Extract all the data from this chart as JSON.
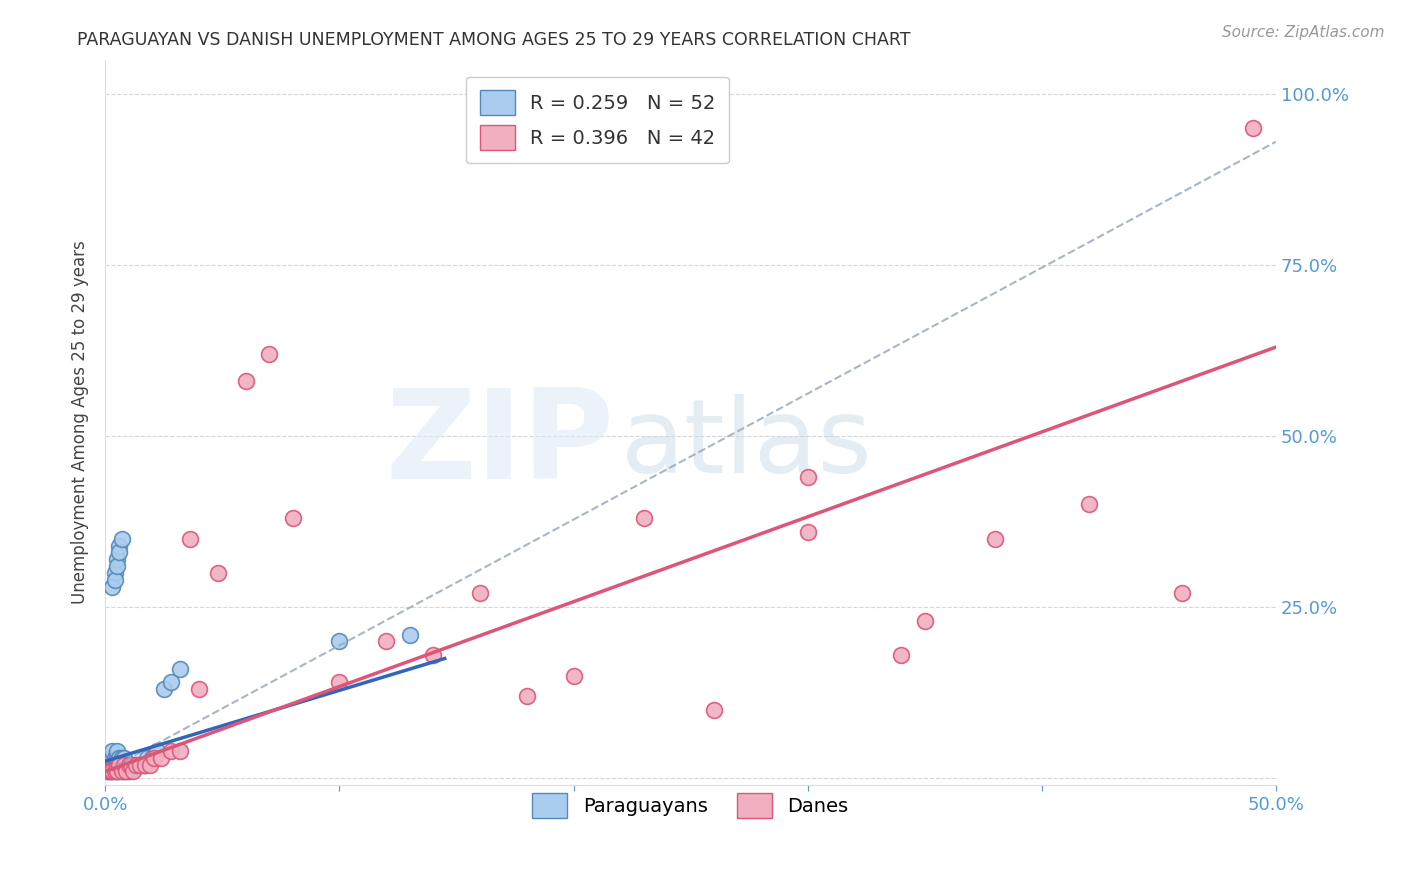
{
  "title": "PARAGUAYAN VS DANISH UNEMPLOYMENT AMONG AGES 25 TO 29 YEARS CORRELATION CHART",
  "source": "Source: ZipAtlas.com",
  "ylabel": "Unemployment Among Ages 25 to 29 years",
  "xlim": [
    0.0,
    0.5
  ],
  "ylim": [
    -0.01,
    1.05
  ],
  "paraguayan_color": "#aaccee",
  "dane_color": "#f0b0c0",
  "paraguayan_edge": "#5588bb",
  "dane_edge": "#dd5577",
  "paraguayan_line_color": "#3366bb",
  "dane_line_color": "#dd5577",
  "dashed_line_color": "#99aabb",
  "tick_color": "#5599dd",
  "title_color": "#333333",
  "source_color": "#999999",
  "paraguayan_R": 0.259,
  "paraguayan_N": 52,
  "dane_R": 0.396,
  "dane_N": 42,
  "par_x": [
    0.001,
    0.001,
    0.002,
    0.002,
    0.002,
    0.003,
    0.003,
    0.003,
    0.003,
    0.004,
    0.004,
    0.004,
    0.005,
    0.005,
    0.005,
    0.005,
    0.006,
    0.006,
    0.006,
    0.007,
    0.007,
    0.007,
    0.008,
    0.008,
    0.008,
    0.009,
    0.009,
    0.01,
    0.01,
    0.011,
    0.012,
    0.013,
    0.014,
    0.015,
    0.016,
    0.017,
    0.018,
    0.02,
    0.022,
    0.025,
    0.028,
    0.032,
    0.004,
    0.005,
    0.006,
    0.003,
    0.004,
    0.005,
    0.006,
    0.007,
    0.1,
    0.13
  ],
  "par_y": [
    0.01,
    0.02,
    0.01,
    0.02,
    0.03,
    0.01,
    0.02,
    0.03,
    0.04,
    0.01,
    0.02,
    0.03,
    0.01,
    0.02,
    0.03,
    0.04,
    0.01,
    0.02,
    0.03,
    0.01,
    0.02,
    0.03,
    0.01,
    0.02,
    0.03,
    0.01,
    0.02,
    0.01,
    0.02,
    0.02,
    0.02,
    0.02,
    0.02,
    0.02,
    0.02,
    0.02,
    0.03,
    0.03,
    0.04,
    0.13,
    0.14,
    0.16,
    0.3,
    0.32,
    0.34,
    0.28,
    0.29,
    0.31,
    0.33,
    0.35,
    0.2,
    0.21
  ],
  "dan_x": [
    0.001,
    0.002,
    0.003,
    0.004,
    0.005,
    0.006,
    0.007,
    0.008,
    0.009,
    0.01,
    0.011,
    0.012,
    0.013,
    0.015,
    0.017,
    0.019,
    0.021,
    0.024,
    0.028,
    0.032,
    0.036,
    0.04,
    0.048,
    0.06,
    0.07,
    0.08,
    0.1,
    0.12,
    0.14,
    0.16,
    0.18,
    0.2,
    0.23,
    0.26,
    0.3,
    0.34,
    0.38,
    0.42,
    0.46,
    0.49,
    0.3,
    0.35
  ],
  "dan_y": [
    0.01,
    0.01,
    0.01,
    0.01,
    0.01,
    0.02,
    0.01,
    0.02,
    0.01,
    0.02,
    0.02,
    0.01,
    0.02,
    0.02,
    0.02,
    0.02,
    0.03,
    0.03,
    0.04,
    0.04,
    0.35,
    0.13,
    0.3,
    0.58,
    0.62,
    0.38,
    0.14,
    0.2,
    0.18,
    0.27,
    0.12,
    0.15,
    0.38,
    0.1,
    0.36,
    0.18,
    0.35,
    0.4,
    0.27,
    0.95,
    0.44,
    0.23
  ],
  "par_line_x0": 0.0,
  "par_line_x1": 0.145,
  "par_line_y0": 0.025,
  "par_line_y1": 0.175,
  "dan_line_x0": 0.0,
  "dan_line_x1": 0.5,
  "dan_line_y0": 0.01,
  "dan_line_y1": 0.63,
  "dash_line_x0": 0.0,
  "dash_line_x1": 0.5,
  "dash_line_y0": 0.01,
  "dash_line_y1": 0.93
}
